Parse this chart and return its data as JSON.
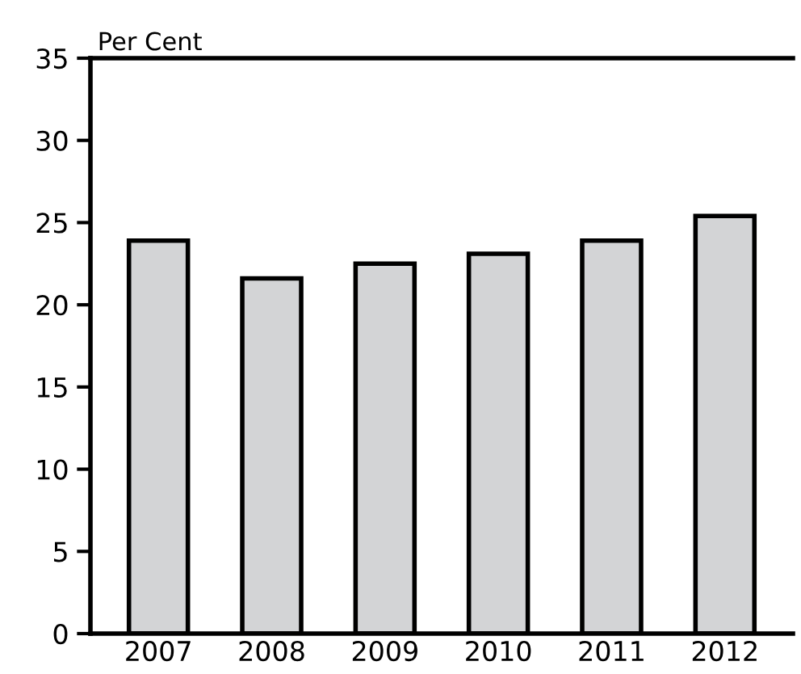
{
  "chart_data": {
    "type": "bar",
    "ylabel": "Per Cent",
    "categories": [
      "2007",
      "2008",
      "2009",
      "2010",
      "2011",
      "2012"
    ],
    "values": [
      23.9,
      21.6,
      22.5,
      23.1,
      23.9,
      25.4
    ],
    "color": "#d3d4d6",
    "ylim": [
      0,
      35
    ],
    "yticks": [
      0,
      5,
      10,
      15,
      20,
      25,
      30,
      35
    ],
    "grid": false
  }
}
